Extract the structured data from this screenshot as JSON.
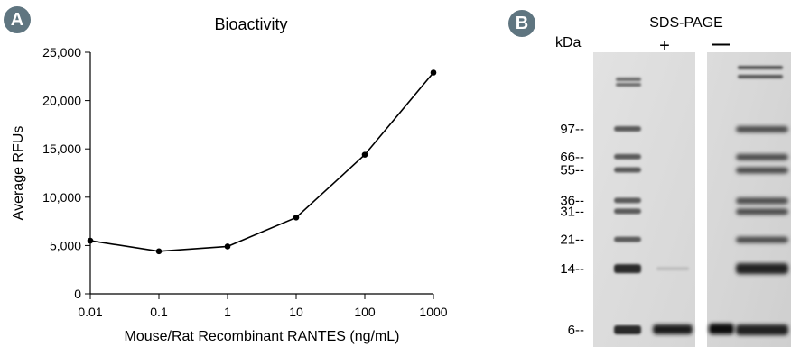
{
  "panel_a": {
    "badge": "A",
    "chart_data": {
      "type": "line",
      "title": "Bioactivity",
      "xlabel": "Mouse/Rat Recombinant RANTES (ng/mL)",
      "ylabel": "Average RFUs",
      "x_scale": "log",
      "x": [
        0.01,
        0.1,
        1,
        10,
        100,
        1000
      ],
      "x_tick_labels": [
        "0.01",
        "0.1",
        "1",
        "10",
        "100",
        "1000"
      ],
      "y_ticks": [
        0,
        5000,
        10000,
        15000,
        20000,
        25000
      ],
      "y_tick_labels": [
        "0",
        "5,000",
        "10,000",
        "15,000",
        "20,000",
        "25,000"
      ],
      "ylim": [
        0,
        25000
      ],
      "series": [
        {
          "values": [
            5500,
            4400,
            4900,
            7900,
            14400,
            22900
          ]
        }
      ],
      "line_color": "#000000",
      "grid": false
    }
  },
  "panel_b": {
    "badge": "B",
    "title": "SDS-PAGE",
    "unit_label": "kDa",
    "lane_plus": "+",
    "lane_minus": "—",
    "markers": [
      {
        "label": "97--",
        "kda": 97
      },
      {
        "label": "66--",
        "kda": 66
      },
      {
        "label": "55--",
        "kda": 55
      },
      {
        "label": "36--",
        "kda": 36
      },
      {
        "label": "31--",
        "kda": 31
      },
      {
        "label": "21--",
        "kda": 21
      },
      {
        "label": "14--",
        "kda": 14
      },
      {
        "label": "6--",
        "kda": 6
      }
    ]
  }
}
